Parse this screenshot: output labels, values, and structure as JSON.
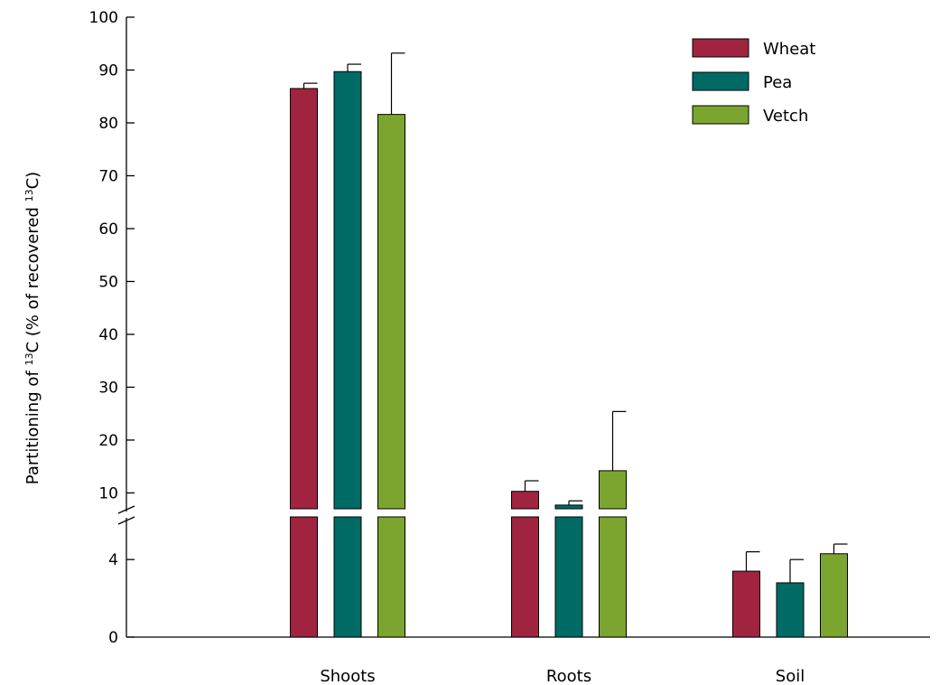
{
  "chart_data": {
    "type": "bar",
    "title": "",
    "xlabel": "",
    "ylabel": {
      "prefix": "Partitioning of ",
      "sup1": "13",
      "middle": "C (% of recovered ",
      "sup2": "13",
      "suffix": "C)"
    },
    "categories": [
      "Shoots",
      "Roots",
      "Soil"
    ],
    "series": [
      {
        "name": "Wheat",
        "color": "#A0243F",
        "values": [
          86.5,
          10.3,
          3.4
        ],
        "errors": [
          1.0,
          2.0,
          1.0
        ]
      },
      {
        "name": "Pea",
        "color": "#006B64",
        "values": [
          89.7,
          7.7,
          2.8
        ],
        "errors": [
          1.4,
          0.8,
          1.2
        ]
      },
      {
        "name": "Vetch",
        "color": "#7BA52E",
        "values": [
          81.6,
          14.2,
          4.3
        ],
        "errors": [
          11.6,
          11.2,
          0.5
        ]
      }
    ],
    "y_axis": {
      "broken": true,
      "lower_range": [
        0,
        6.2
      ],
      "upper_range": [
        7,
        100
      ],
      "lower_ticks": [
        "0",
        "4"
      ],
      "upper_ticks": [
        "10",
        "20",
        "30",
        "40",
        "50",
        "60",
        "70",
        "80",
        "90",
        "100"
      ]
    },
    "grid": false,
    "legend_position": "top-right"
  }
}
